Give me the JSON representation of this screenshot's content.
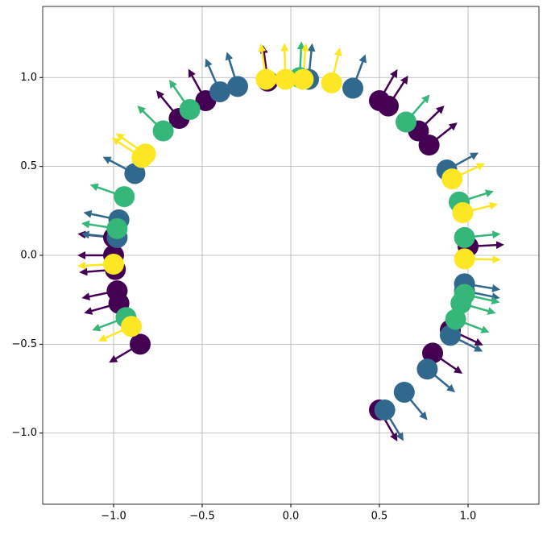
{
  "chart_data": {
    "type": "scatter",
    "xlim": [
      -1.4,
      1.4
    ],
    "ylim": [
      -1.4,
      1.4
    ],
    "xticks": [
      {
        "value": -1.0,
        "label": "−1.0"
      },
      {
        "value": -0.5,
        "label": "−0.5"
      },
      {
        "value": 0.0,
        "label": "0.0"
      },
      {
        "value": 0.5,
        "label": "0.5"
      },
      {
        "value": 1.0,
        "label": "1.0"
      }
    ],
    "yticks": [
      {
        "value": -1.0,
        "label": "−1.0"
      },
      {
        "value": -0.5,
        "label": "−0.5"
      },
      {
        "value": 0.0,
        "label": "0.0"
      },
      {
        "value": 0.5,
        "label": "0.5"
      },
      {
        "value": 1.0,
        "label": "1.0"
      }
    ],
    "grid": true,
    "series": [
      {
        "color": "#440154",
        "x": [
          -0.85,
          -0.13,
          0.5,
          0.55,
          0.72,
          0.78,
          -0.48,
          -0.63,
          -1.0,
          -1.0,
          -0.99,
          -0.98,
          -0.97,
          1.0,
          0.8,
          0.9,
          0.5
        ],
        "values": [
          -0.5,
          0.98,
          0.87,
          0.84,
          0.7,
          0.62,
          0.87,
          0.77,
          0.1,
          0.0,
          -0.08,
          -0.2,
          -0.27,
          0.05,
          -0.55,
          -0.42,
          -0.87
        ]
      },
      {
        "color": "#31688e",
        "x": [
          0.53,
          0.64,
          0.77,
          0.9,
          0.98,
          0.98,
          0.88,
          0.35,
          0.1,
          -0.3,
          -0.4,
          -0.88,
          -0.97,
          -0.98
        ],
        "values": [
          -0.87,
          -0.77,
          -0.64,
          -0.45,
          -0.16,
          -0.2,
          0.48,
          0.94,
          0.99,
          0.95,
          0.92,
          0.46,
          0.2,
          0.1
        ]
      },
      {
        "color": "#35b779",
        "x": [
          0.93,
          0.96,
          0.98,
          0.98,
          0.95,
          0.65,
          -0.57,
          -0.72,
          -0.94,
          -0.98,
          -0.93,
          0.05
        ],
        "values": [
          -0.36,
          -0.27,
          -0.22,
          0.1,
          0.3,
          0.75,
          0.82,
          0.7,
          0.33,
          0.15,
          -0.35,
          1.0
        ]
      },
      {
        "color": "#fde725",
        "x": [
          0.98,
          0.97,
          0.91,
          0.23,
          0.07,
          -0.03,
          -0.14,
          -0.82,
          -0.84,
          -0.9,
          -1.0
        ],
        "values": [
          -0.02,
          0.24,
          0.43,
          0.97,
          0.99,
          0.99,
          0.99,
          0.57,
          0.55,
          -0.4,
          -0.05
        ]
      }
    ]
  }
}
